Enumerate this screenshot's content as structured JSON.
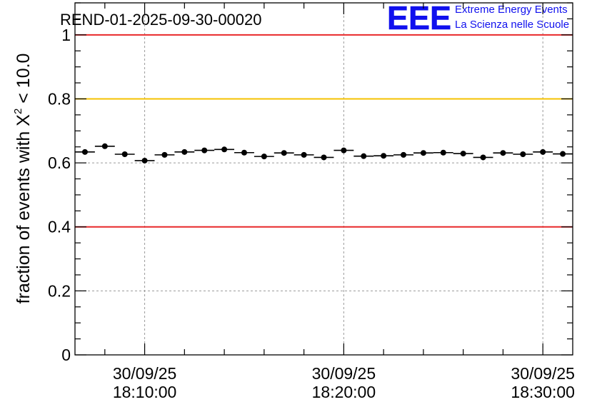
{
  "chart_data": {
    "type": "scatter",
    "title": "REND-01-2025-09-30-00020",
    "ylabel_prefix": "fraction of events with ",
    "ylabel_symbol": "X",
    "ylabel_superscript": "2",
    "ylabel_suffix": " < 10.0",
    "ylim": [
      0,
      1.1
    ],
    "y_ticks": [
      0,
      0.2,
      0.4,
      0.6,
      0.8,
      1
    ],
    "y_tick_labels": [
      "0",
      "0.2",
      "0.4",
      "0.6",
      "0.8",
      "1"
    ],
    "x_range_minutes": [
      6.5,
      31.5
    ],
    "x_major_ticks_minutes": [
      10,
      20,
      30
    ],
    "x_tick_dates": [
      "30/09/25",
      "30/09/25",
      "30/09/25"
    ],
    "x_tick_times": [
      "18:10:00",
      "18:20:00",
      "18:30:00"
    ],
    "bin_width_minutes": 1,
    "grid": true,
    "reference_lines": [
      {
        "value": 1.0,
        "color": "#e8282a"
      },
      {
        "value": 0.8,
        "color": "#f5c200"
      },
      {
        "value": 0.4,
        "color": "#e8282a"
      }
    ],
    "series": [
      {
        "name": "fraction",
        "x": [
          7,
          8,
          9,
          10,
          11,
          12,
          13,
          14,
          15,
          16,
          17,
          18,
          19,
          20,
          21,
          22,
          23,
          24,
          25,
          26,
          27,
          28,
          29,
          30,
          31
        ],
        "values": [
          0.634,
          0.652,
          0.627,
          0.607,
          0.625,
          0.634,
          0.639,
          0.642,
          0.632,
          0.62,
          0.631,
          0.625,
          0.617,
          0.639,
          0.621,
          0.622,
          0.625,
          0.631,
          0.632,
          0.629,
          0.617,
          0.631,
          0.627,
          0.634,
          0.628
        ],
        "errors": [
          0.007,
          0.007,
          0.007,
          0.007,
          0.007,
          0.007,
          0.007,
          0.007,
          0.007,
          0.007,
          0.007,
          0.007,
          0.007,
          0.007,
          0.007,
          0.007,
          0.007,
          0.007,
          0.007,
          0.007,
          0.007,
          0.007,
          0.007,
          0.007,
          0.007
        ]
      }
    ]
  },
  "logo": {
    "mark": "EEE",
    "line1": "Extreme Energy Events",
    "line2": "La Scienza nelle Scuole",
    "color": "#1010ee"
  }
}
